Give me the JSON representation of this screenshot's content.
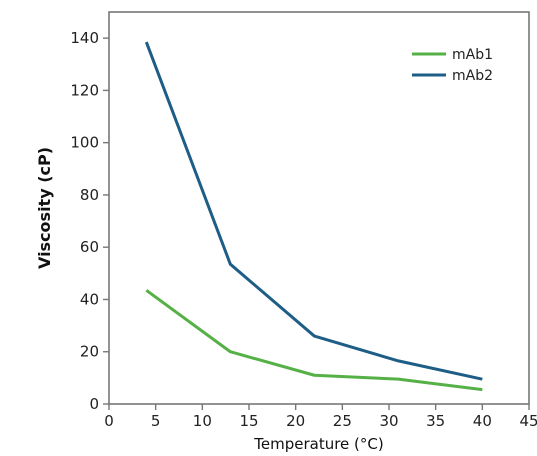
{
  "chart_data": {
    "type": "line",
    "title": "",
    "xlabel": "Temperature (°C)",
    "ylabel": "Viscosity (cP)",
    "xlim": [
      0,
      45
    ],
    "ylim": [
      0,
      150
    ],
    "xticks": [
      0,
      5,
      10,
      15,
      20,
      25,
      30,
      35,
      40,
      45
    ],
    "yticks": [
      0,
      20,
      40,
      60,
      80,
      100,
      120,
      140
    ],
    "grid": false,
    "legend_position": "top-right",
    "x": [
      4,
      13,
      22,
      31,
      40
    ],
    "series": [
      {
        "name": "mAb1",
        "color": "#55b146",
        "values": [
          43.5,
          20,
          11,
          9.5,
          5.5
        ]
      },
      {
        "name": "mAb2",
        "color": "#1d5d86",
        "values": [
          138.5,
          53.5,
          26,
          16.5,
          9.5
        ]
      }
    ]
  }
}
